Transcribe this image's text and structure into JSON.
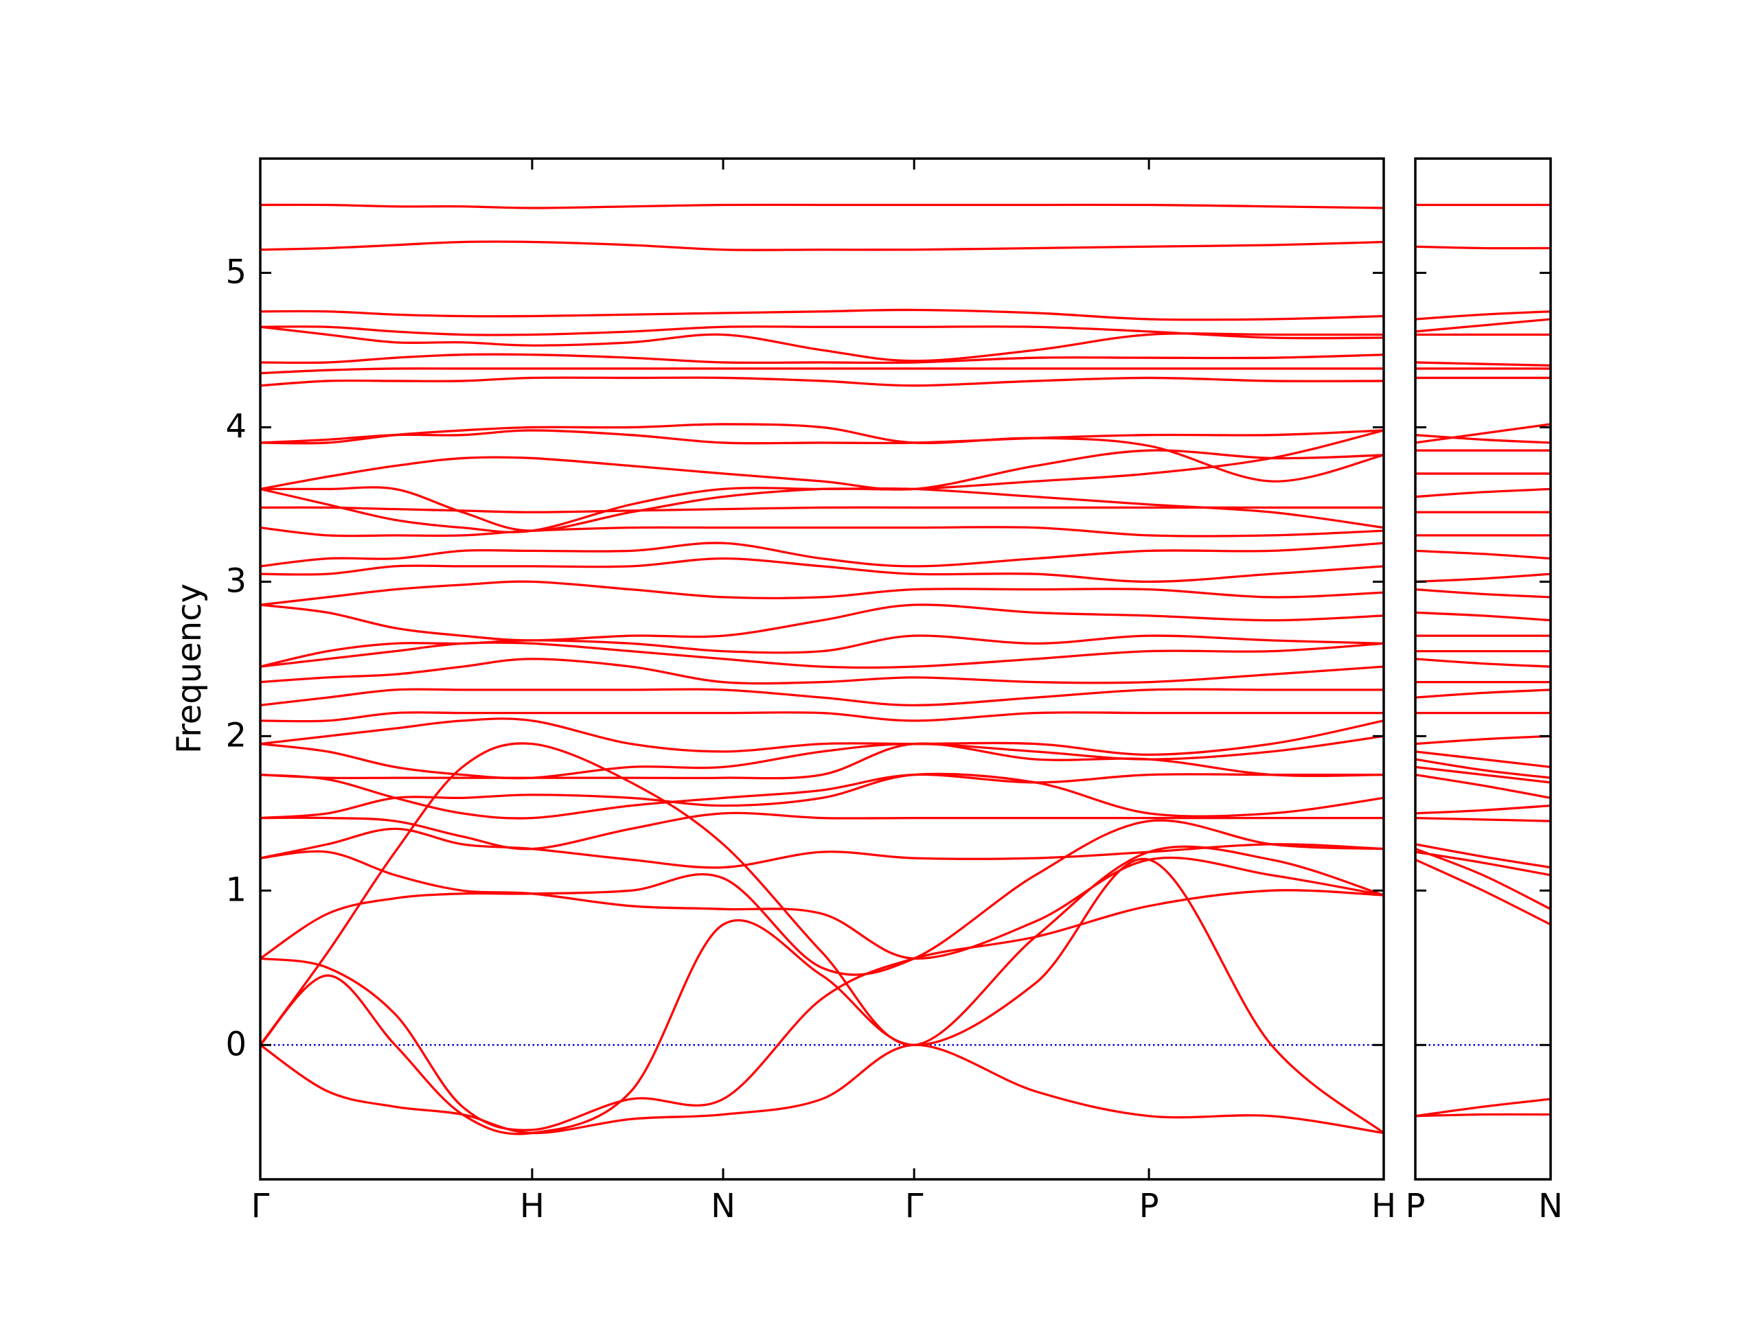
{
  "chart_data": [
    {
      "type": "line",
      "ylabel": "Frequency",
      "color": "#ff0000",
      "line_width": 2,
      "ylim": [
        -0.87,
        5.74
      ],
      "yticks": [
        0,
        1,
        2,
        3,
        4,
        5
      ],
      "ytick_labels": true,
      "xlim": [
        0,
        1
      ],
      "xticks": [
        {
          "value": 0,
          "label": "Γ"
        },
        {
          "value": 0.242,
          "label": "H"
        },
        {
          "value": 0.412,
          "label": "N"
        },
        {
          "value": 0.582,
          "label": "Γ"
        },
        {
          "value": 0.791,
          "label": "P"
        },
        {
          "value": 1,
          "label": "H"
        }
      ],
      "reference_line": {
        "y": 0,
        "color": "#0000cc",
        "style": "dotted"
      },
      "x": [
        0,
        0.06,
        0.12,
        0.18,
        0.242,
        0.33,
        0.412,
        0.5,
        0.582,
        0.69,
        0.791,
        0.9,
        1
      ],
      "series": [
        {
          "values": [
            0,
            -0.3,
            -0.4,
            -0.45,
            -0.57,
            -0.48,
            -0.45,
            -0.35,
            0,
            -0.3,
            -0.46,
            -0.46,
            -0.57
          ]
        },
        {
          "values": [
            0,
            0.45,
            0,
            -0.45,
            -0.57,
            -0.3,
            0.78,
            0.45,
            0,
            0.4,
            1.2,
            0,
            -0.57
          ]
        },
        {
          "values": [
            0.56,
            0.5,
            0.2,
            -0.4,
            -0.55,
            -0.35,
            -0.35,
            0.3,
            0.56,
            0.7,
            0.9,
            1.0,
            0.97
          ]
        },
        {
          "values": [
            0,
            0.6,
            1.25,
            1.8,
            1.95,
            1.7,
            1.3,
            0.6,
            0,
            0.7,
            1.25,
            1.2,
            0.97
          ]
        },
        {
          "values": [
            0.56,
            0.85,
            0.95,
            0.98,
            0.98,
            1.0,
            1.08,
            0.5,
            0.56,
            1.1,
            1.45,
            1.3,
            1.27
          ]
        },
        {
          "values": [
            1.21,
            1.25,
            1.1,
            1.0,
            0.98,
            0.9,
            0.88,
            0.85,
            0.56,
            0.8,
            1.2,
            1.1,
            0.97
          ]
        },
        {
          "values": [
            1.21,
            1.3,
            1.4,
            1.3,
            1.27,
            1.2,
            1.15,
            1.25,
            1.21,
            1.21,
            1.25,
            1.3,
            1.27
          ]
        },
        {
          "values": [
            1.47,
            1.47,
            1.45,
            1.35,
            1.27,
            1.4,
            1.5,
            1.47,
            1.47,
            1.47,
            1.47,
            1.47,
            1.47
          ]
        },
        {
          "values": [
            1.47,
            1.5,
            1.6,
            1.6,
            1.62,
            1.6,
            1.55,
            1.6,
            1.75,
            1.7,
            1.5,
            1.5,
            1.6
          ]
        },
        {
          "values": [
            1.75,
            1.72,
            1.6,
            1.5,
            1.47,
            1.55,
            1.6,
            1.65,
            1.75,
            1.7,
            1.75,
            1.75,
            1.75
          ]
        },
        {
          "values": [
            1.75,
            1.73,
            1.73,
            1.73,
            1.73,
            1.73,
            1.73,
            1.75,
            1.95,
            1.85,
            1.85,
            1.75,
            1.75
          ]
        },
        {
          "values": [
            1.95,
            1.9,
            1.8,
            1.75,
            1.73,
            1.8,
            1.8,
            1.9,
            1.95,
            1.9,
            1.85,
            1.9,
            2.0
          ]
        },
        {
          "values": [
            1.95,
            2.0,
            2.05,
            2.1,
            2.1,
            1.95,
            1.9,
            1.95,
            1.95,
            1.95,
            1.88,
            1.95,
            2.1
          ]
        },
        {
          "values": [
            2.1,
            2.1,
            2.15,
            2.15,
            2.15,
            2.15,
            2.15,
            2.15,
            2.1,
            2.15,
            2.15,
            2.15,
            2.15
          ]
        },
        {
          "values": [
            2.2,
            2.25,
            2.3,
            2.3,
            2.3,
            2.3,
            2.3,
            2.25,
            2.2,
            2.25,
            2.3,
            2.3,
            2.3
          ]
        },
        {
          "values": [
            2.35,
            2.38,
            2.4,
            2.45,
            2.5,
            2.45,
            2.35,
            2.35,
            2.38,
            2.35,
            2.35,
            2.4,
            2.45
          ]
        },
        {
          "values": [
            2.45,
            2.5,
            2.55,
            2.6,
            2.6,
            2.55,
            2.5,
            2.45,
            2.45,
            2.5,
            2.55,
            2.55,
            2.6
          ]
        },
        {
          "values": [
            2.45,
            2.55,
            2.6,
            2.6,
            2.62,
            2.6,
            2.55,
            2.55,
            2.65,
            2.6,
            2.65,
            2.62,
            2.6
          ]
        },
        {
          "values": [
            2.85,
            2.8,
            2.7,
            2.65,
            2.62,
            2.65,
            2.65,
            2.75,
            2.85,
            2.8,
            2.78,
            2.75,
            2.78
          ]
        },
        {
          "values": [
            2.85,
            2.9,
            2.95,
            2.98,
            3.0,
            2.95,
            2.9,
            2.9,
            2.95,
            2.95,
            2.95,
            2.9,
            2.93
          ]
        },
        {
          "values": [
            3.05,
            3.05,
            3.1,
            3.1,
            3.1,
            3.1,
            3.15,
            3.1,
            3.05,
            3.05,
            3.0,
            3.05,
            3.1
          ]
        },
        {
          "values": [
            3.1,
            3.15,
            3.15,
            3.2,
            3.2,
            3.2,
            3.25,
            3.15,
            3.1,
            3.15,
            3.2,
            3.2,
            3.25
          ]
        },
        {
          "values": [
            3.35,
            3.3,
            3.3,
            3.3,
            3.33,
            3.35,
            3.35,
            3.35,
            3.35,
            3.35,
            3.3,
            3.3,
            3.33
          ]
        },
        {
          "values": [
            3.48,
            3.48,
            3.47,
            3.46,
            3.45,
            3.46,
            3.47,
            3.48,
            3.48,
            3.48,
            3.48,
            3.48,
            3.48
          ]
        },
        {
          "values": [
            3.6,
            3.5,
            3.4,
            3.35,
            3.33,
            3.5,
            3.6,
            3.6,
            3.6,
            3.55,
            3.5,
            3.45,
            3.35
          ]
        },
        {
          "values": [
            3.6,
            3.6,
            3.6,
            3.45,
            3.33,
            3.45,
            3.55,
            3.6,
            3.6,
            3.65,
            3.7,
            3.8,
            3.98
          ]
        },
        {
          "values": [
            3.6,
            3.68,
            3.75,
            3.8,
            3.8,
            3.75,
            3.7,
            3.65,
            3.6,
            3.75,
            3.85,
            3.8,
            3.82
          ]
        },
        {
          "values": [
            3.9,
            3.92,
            3.95,
            3.95,
            3.98,
            3.95,
            3.9,
            3.9,
            3.9,
            3.93,
            3.95,
            3.95,
            3.98
          ]
        },
        {
          "values": [
            3.9,
            3.9,
            3.95,
            3.98,
            4.0,
            4.0,
            4.02,
            4.0,
            3.9,
            3.93,
            3.88,
            3.65,
            3.82
          ]
        },
        {
          "values": [
            4.27,
            4.3,
            4.3,
            4.3,
            4.32,
            4.32,
            4.32,
            4.3,
            4.27,
            4.3,
            4.32,
            4.3,
            4.3
          ]
        },
        {
          "values": [
            4.35,
            4.37,
            4.38,
            4.38,
            4.38,
            4.38,
            4.38,
            4.38,
            4.38,
            4.38,
            4.38,
            4.38,
            4.38
          ]
        },
        {
          "values": [
            4.42,
            4.42,
            4.45,
            4.47,
            4.47,
            4.45,
            4.42,
            4.42,
            4.42,
            4.45,
            4.45,
            4.45,
            4.47
          ]
        },
        {
          "values": [
            4.65,
            4.6,
            4.55,
            4.55,
            4.53,
            4.55,
            4.6,
            4.5,
            4.43,
            4.5,
            4.6,
            4.6,
            4.6
          ]
        },
        {
          "values": [
            4.65,
            4.65,
            4.62,
            4.6,
            4.6,
            4.62,
            4.65,
            4.65,
            4.65,
            4.65,
            4.62,
            4.58,
            4.58
          ]
        },
        {
          "values": [
            4.75,
            4.75,
            4.73,
            4.72,
            4.72,
            4.73,
            4.74,
            4.75,
            4.76,
            4.74,
            4.7,
            4.7,
            4.72
          ]
        },
        {
          "values": [
            5.15,
            5.16,
            5.18,
            5.2,
            5.2,
            5.18,
            5.15,
            5.15,
            5.15,
            5.16,
            5.17,
            5.18,
            5.2
          ]
        },
        {
          "values": [
            5.44,
            5.44,
            5.43,
            5.43,
            5.42,
            5.43,
            5.44,
            5.44,
            5.44,
            5.44,
            5.44,
            5.43,
            5.42
          ]
        }
      ]
    },
    {
      "type": "line",
      "color": "#ff0000",
      "line_width": 2,
      "ylim": [
        -0.87,
        5.74
      ],
      "yticks": [
        0,
        1,
        2,
        3,
        4,
        5
      ],
      "ytick_labels": false,
      "xlim": [
        0,
        0.12
      ],
      "xticks": [
        {
          "value": 0,
          "label": "P"
        },
        {
          "value": 0.12,
          "label": "N"
        }
      ],
      "reference_line": {
        "y": 0,
        "color": "#0000cc",
        "style": "dotted"
      },
      "x": [
        0,
        0.06,
        0.12
      ],
      "series": [
        {
          "values": [
            -0.46,
            -0.45,
            -0.45
          ]
        },
        {
          "values": [
            -0.46,
            -0.4,
            -0.35
          ]
        },
        {
          "values": [
            1.2,
            1.0,
            0.78
          ]
        },
        {
          "values": [
            1.27,
            1.1,
            0.88
          ]
        },
        {
          "values": [
            1.25,
            1.18,
            1.1
          ]
        },
        {
          "values": [
            1.3,
            1.22,
            1.15
          ]
        },
        {
          "values": [
            1.47,
            1.46,
            1.45
          ]
        },
        {
          "values": [
            1.5,
            1.52,
            1.55
          ]
        },
        {
          "values": [
            1.75,
            1.68,
            1.6
          ]
        },
        {
          "values": [
            1.8,
            1.75,
            1.7
          ]
        },
        {
          "values": [
            1.85,
            1.78,
            1.73
          ]
        },
        {
          "values": [
            1.9,
            1.85,
            1.8
          ]
        },
        {
          "values": [
            1.95,
            1.98,
            2.0
          ]
        },
        {
          "values": [
            2.15,
            2.15,
            2.15
          ]
        },
        {
          "values": [
            2.25,
            2.28,
            2.3
          ]
        },
        {
          "values": [
            2.35,
            2.35,
            2.35
          ]
        },
        {
          "values": [
            2.5,
            2.47,
            2.45
          ]
        },
        {
          "values": [
            2.55,
            2.55,
            2.55
          ]
        },
        {
          "values": [
            2.65,
            2.65,
            2.65
          ]
        },
        {
          "values": [
            2.8,
            2.78,
            2.75
          ]
        },
        {
          "values": [
            2.95,
            2.92,
            2.9
          ]
        },
        {
          "values": [
            3.0,
            3.02,
            3.05
          ]
        },
        {
          "values": [
            3.2,
            3.18,
            3.15
          ]
        },
        {
          "values": [
            3.3,
            3.3,
            3.3
          ]
        },
        {
          "values": [
            3.45,
            3.45,
            3.45
          ]
        },
        {
          "values": [
            3.55,
            3.58,
            3.6
          ]
        },
        {
          "values": [
            3.7,
            3.7,
            3.7
          ]
        },
        {
          "values": [
            3.85,
            3.85,
            3.85
          ]
        },
        {
          "values": [
            3.95,
            3.92,
            3.9
          ]
        },
        {
          "values": [
            3.9,
            3.96,
            4.02
          ]
        },
        {
          "values": [
            4.32,
            4.32,
            4.32
          ]
        },
        {
          "values": [
            4.38,
            4.38,
            4.38
          ]
        },
        {
          "values": [
            4.42,
            4.41,
            4.4
          ]
        },
        {
          "values": [
            4.6,
            4.6,
            4.6
          ]
        },
        {
          "values": [
            4.62,
            4.66,
            4.7
          ]
        },
        {
          "values": [
            4.7,
            4.73,
            4.75
          ]
        },
        {
          "values": [
            5.17,
            5.16,
            5.16
          ]
        },
        {
          "values": [
            5.44,
            5.44,
            5.44
          ]
        }
      ]
    }
  ]
}
